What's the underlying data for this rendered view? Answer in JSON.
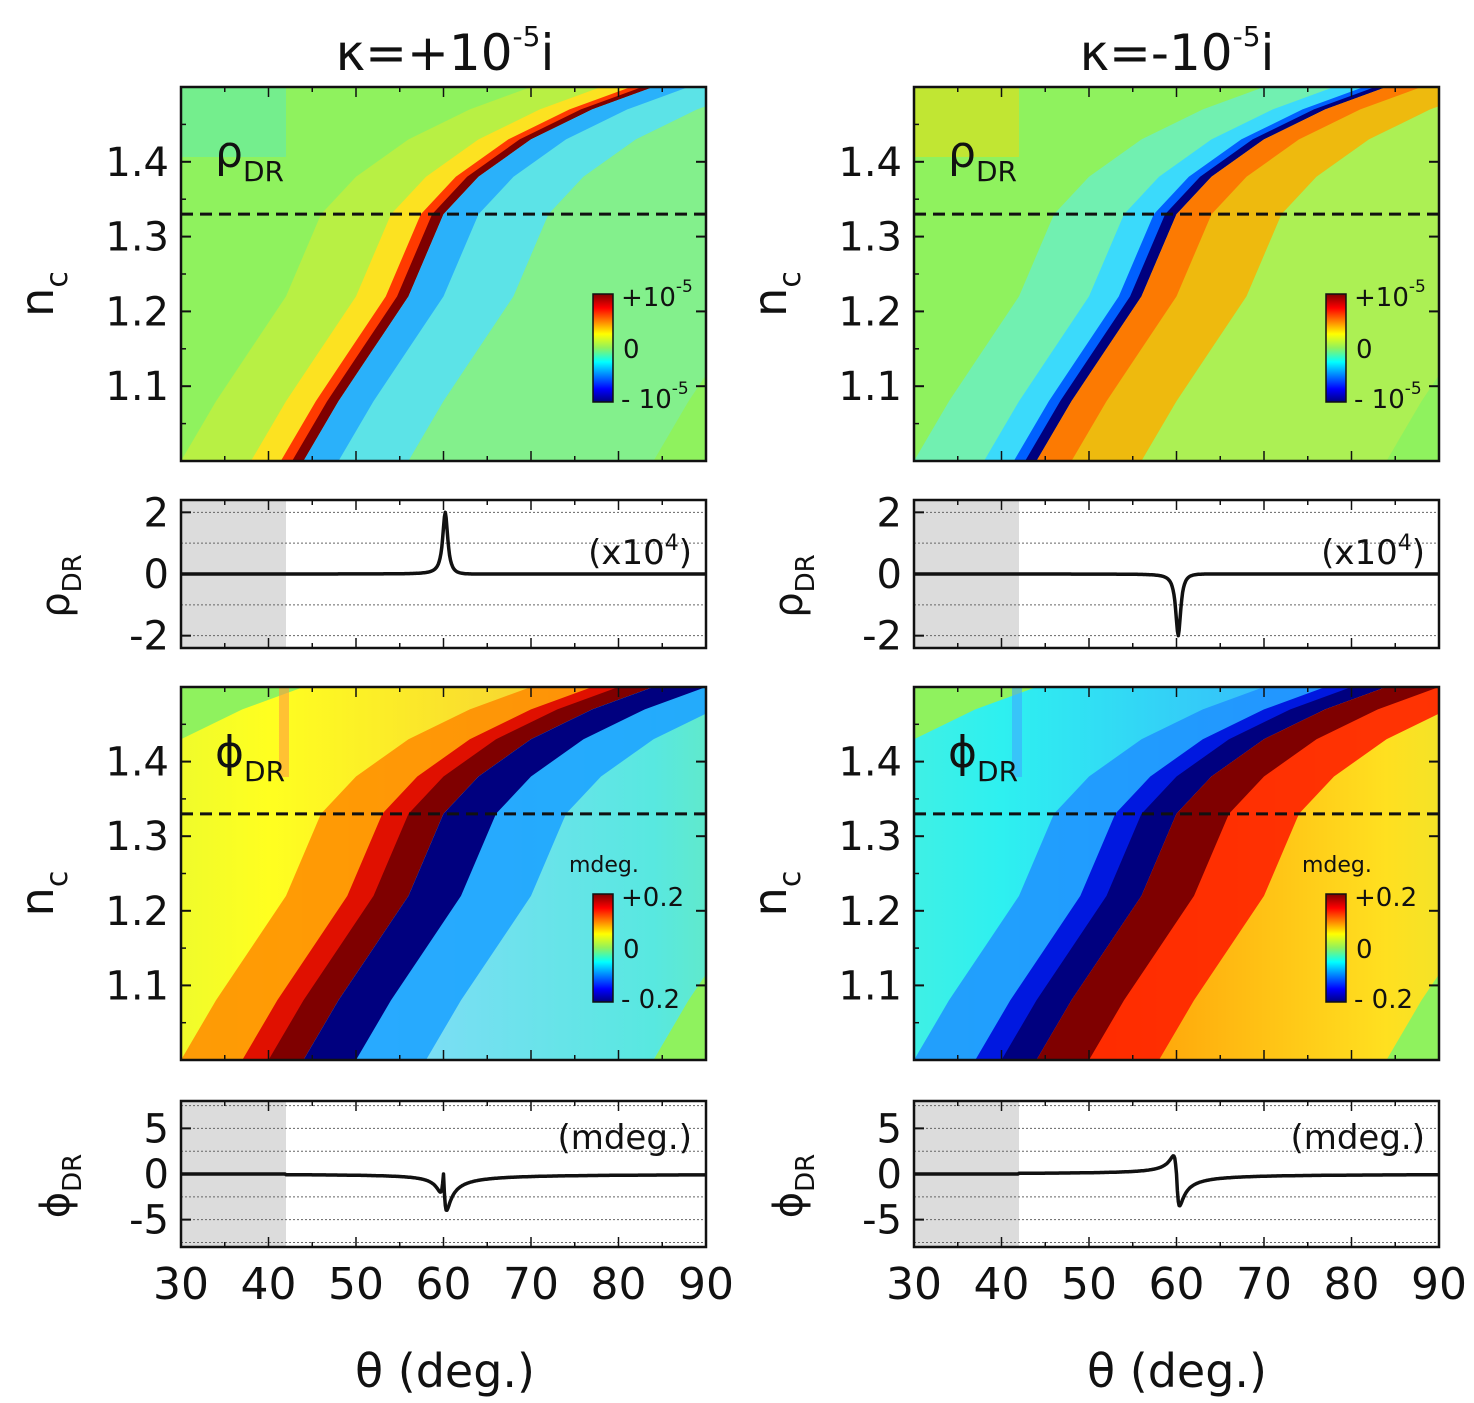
{
  "columns": [
    {
      "id": "left",
      "title_base": "κ=+10",
      "title_exp": "-5",
      "title_suffix": "i"
    },
    {
      "id": "right",
      "title_base": "κ=-10",
      "title_exp": "-5",
      "title_suffix": "i"
    }
  ],
  "shared": {
    "xlabel": "θ (deg.)",
    "x_ticks": [
      "30",
      "40",
      "50",
      "60",
      "70",
      "80",
      "90"
    ],
    "y_map_ticks": [
      "1.1",
      "1.2",
      "1.3",
      "1.4"
    ],
    "y_map_label_base": "n",
    "y_map_label_sub": "c",
    "rho_label_base": "ρ",
    "phi_label_base": "ϕ",
    "sub_dr": "DR",
    "rho_line_ticks": [
      "2",
      "0",
      "-2"
    ],
    "phi_line_ticks": [
      "5",
      "0",
      "-5"
    ],
    "rho_note_base": "(x10",
    "rho_note_exp": "4",
    "rho_note_end": ")",
    "phi_note": "(mdeg.)",
    "cb_rho": {
      "top_base": "+10",
      "top_exp": "-5",
      "mid": "0",
      "bot_base": "- 10",
      "bot_exp": "-5"
    },
    "cb_phi": {
      "unit": "mdeg.",
      "top": "+0.2",
      "mid": "0",
      "bot": "- 0.2"
    }
  },
  "colors": {
    "background_map": "#8ff25e",
    "dashed_line": "#111111",
    "shaded_region": "#dcdcdc",
    "jet": [
      "#00007f",
      "#0000ff",
      "#007fff",
      "#00ffff",
      "#7fff7f",
      "#ffff00",
      "#ff7f00",
      "#ff0000",
      "#7f0000"
    ]
  },
  "chart_data": [
    {
      "type": "heatmap",
      "panel": "left-rho-map",
      "quantity": "rho_DR",
      "x": "theta (deg.)",
      "y": "n_c",
      "xlim": [
        30,
        90
      ],
      "ylim": [
        1.0,
        1.5
      ],
      "clim": [
        -1e-05,
        1e-05
      ],
      "resonance_curve": {
        "theta": [
          44.0,
          48.0,
          52.0,
          56.0,
          60.0,
          64.0,
          70.0,
          77.0,
          84.0
        ],
        "n_c": [
          1.0,
          1.08,
          1.15,
          1.22,
          1.33,
          1.38,
          1.43,
          1.47,
          1.5
        ]
      },
      "dashed_line_n_c": 1.33,
      "sign": 1
    },
    {
      "type": "line",
      "panel": "left-rho-line",
      "quantity": "rho_DR (x10^4)",
      "xlim": [
        30,
        90
      ],
      "ylim": [
        -2.4,
        2.4
      ],
      "shaded_x": [
        30,
        42
      ],
      "peak_theta": 60.2,
      "peak_value": 2.0,
      "after_peak_value": -0.1,
      "sign": 1
    },
    {
      "type": "heatmap",
      "panel": "left-phi-map",
      "quantity": "phi_DR (mdeg.)",
      "x": "theta (deg.)",
      "y": "n_c",
      "xlim": [
        30,
        90
      ],
      "ylim": [
        1.0,
        1.5
      ],
      "clim": [
        -0.2,
        0.2
      ],
      "dashed_line_n_c": 1.33,
      "sign": 1
    },
    {
      "type": "line",
      "panel": "left-phi-line",
      "quantity": "phi_DR (mdeg.)",
      "xlim": [
        30,
        90
      ],
      "ylim": [
        -8,
        8
      ],
      "shaded_x": [
        30,
        42
      ],
      "peak_theta": 60.0,
      "max_value": 2.0,
      "min_value": -4.0,
      "sign": 1
    },
    {
      "type": "heatmap",
      "panel": "right-rho-map",
      "quantity": "rho_DR",
      "x": "theta (deg.)",
      "y": "n_c",
      "xlim": [
        30,
        90
      ],
      "ylim": [
        1.0,
        1.5
      ],
      "clim": [
        -1e-05,
        1e-05
      ],
      "dashed_line_n_c": 1.33,
      "sign": -1
    },
    {
      "type": "line",
      "panel": "right-rho-line",
      "quantity": "rho_DR (x10^4)",
      "xlim": [
        30,
        90
      ],
      "ylim": [
        -2.4,
        2.4
      ],
      "shaded_x": [
        30,
        42
      ],
      "peak_theta": 60.2,
      "peak_value": -2.0,
      "after_peak_value": 0.1,
      "sign": -1
    },
    {
      "type": "heatmap",
      "panel": "right-phi-map",
      "quantity": "phi_DR (mdeg.)",
      "x": "theta (deg.)",
      "y": "n_c",
      "xlim": [
        30,
        90
      ],
      "ylim": [
        1.0,
        1.5
      ],
      "clim": [
        -0.2,
        0.2
      ],
      "dashed_line_n_c": 1.33,
      "sign": -1
    },
    {
      "type": "line",
      "panel": "right-phi-line",
      "quantity": "phi_DR (mdeg.)",
      "xlim": [
        30,
        90
      ],
      "ylim": [
        -8,
        8
      ],
      "shaded_x": [
        30,
        42
      ],
      "peak_theta": 60.0,
      "max_value": 3.5,
      "min_value": -2.0,
      "sign": -1
    }
  ]
}
